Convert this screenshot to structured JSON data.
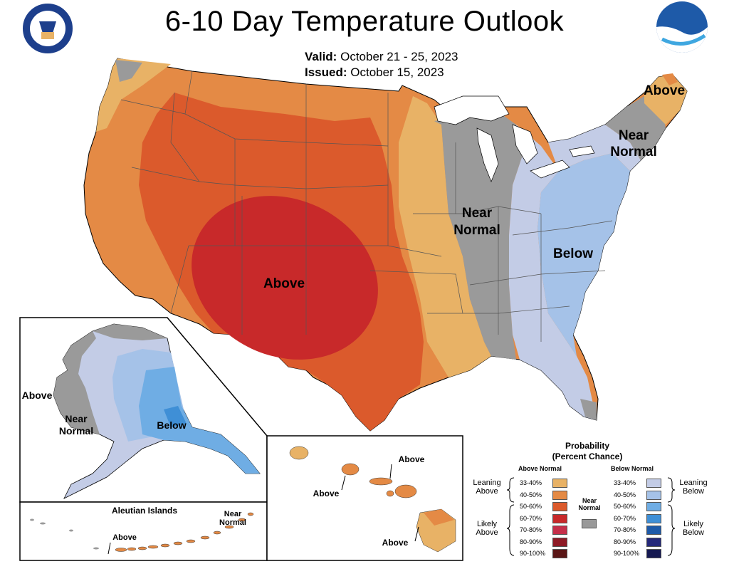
{
  "title": "6-10 Day Temperature Outlook",
  "valid_label": "Valid:",
  "valid_value": "October 21 - 25, 2023",
  "issued_label": "Issued:",
  "issued_value": "October 15, 2023",
  "logos": {
    "left": "Department of Commerce seal",
    "right": "NOAA",
    "left_icon": "doc-seal-icon",
    "right_icon": "noaa-logo-icon"
  },
  "map_labels": {
    "conus_above": "Above",
    "conus_near_1": "Near",
    "conus_near_2": "Normal",
    "conus_below": "Below",
    "maine_above": "Above",
    "ne_near_1": "Near",
    "ne_near_2": "Normal",
    "ak_above": "Above",
    "ak_near_1": "Near",
    "ak_near_2": "Normal",
    "ak_below": "Below",
    "aleutian_title": "Aleutian Islands",
    "aleutian_near_1": "Near",
    "aleutian_near_2": "Normal",
    "aleutian_above": "Above",
    "hi_above_1": "Above",
    "hi_above_2": "Above",
    "hi_above_3": "Above"
  },
  "legend": {
    "title_1": "Probability",
    "title_2": "(Percent Chance)",
    "above_header": "Above Normal",
    "below_header": "Below Normal",
    "near_1": "Near",
    "near_2": "Normal",
    "leaning_above_1": "Leaning",
    "leaning_above_2": "Above",
    "likely_above_1": "Likely",
    "likely_above_2": "Above",
    "leaning_below_1": "Leaning",
    "leaning_below_2": "Below",
    "likely_below_1": "Likely",
    "likely_below_2": "Below",
    "ranges": [
      "33-40%",
      "40-50%",
      "50-60%",
      "60-70%",
      "70-80%",
      "80-90%",
      "90-100%"
    ],
    "above_colors": [
      "#E8B266",
      "#E48A45",
      "#DB5A2C",
      "#C8292A",
      "#C52F4A",
      "#8E1B26",
      "#5A1616"
    ],
    "below_colors": [
      "#C3CCE6",
      "#A5C2E8",
      "#6FADE4",
      "#3F8FD6",
      "#1E5AA8",
      "#25297A",
      "#151952"
    ],
    "near_color": "#999999"
  },
  "colors": {
    "land_gray": "#9A9A9A",
    "white": "#FFFFFF",
    "border": "#000000",
    "state_line": "#555555"
  }
}
